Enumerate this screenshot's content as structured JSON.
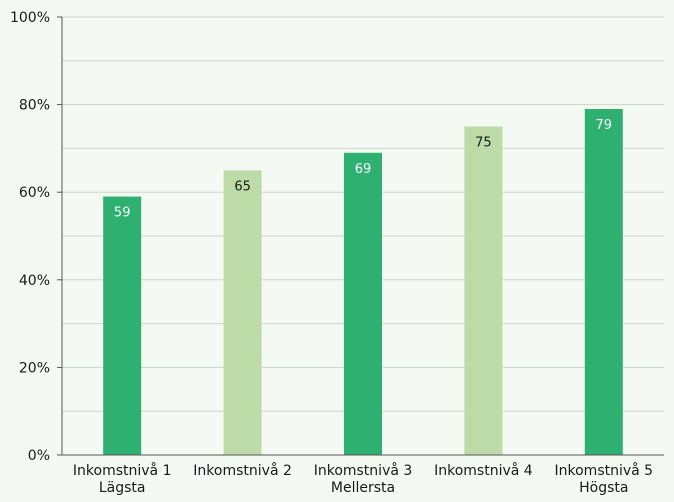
{
  "chart_data": {
    "type": "bar",
    "categories": [
      [
        "Inkomstnivå 1",
        "Lägsta"
      ],
      [
        "Inkomstnivå 2"
      ],
      [
        "Inkomstnivå 3",
        "Mellersta"
      ],
      [
        "Inkomstnivå 4"
      ],
      [
        "Inkomstnivå 5",
        "Högsta"
      ]
    ],
    "values": [
      59,
      65,
      69,
      75,
      79
    ],
    "data_labels": [
      "59",
      "65",
      "69",
      "75",
      "79"
    ],
    "bar_colors": [
      "#2db070",
      "#bddba7",
      "#2db070",
      "#bddba7",
      "#2db070"
    ],
    "label_colors": [
      "#ffffff",
      "#1a1a1a",
      "#ffffff",
      "#1a1a1a",
      "#ffffff"
    ],
    "ylim": [
      0,
      100
    ],
    "yticks": [
      0,
      20,
      40,
      60,
      80,
      100
    ],
    "ytick_labels": [
      "0%",
      "20%",
      "40%",
      "60%",
      "80%",
      "100%"
    ],
    "grid": true,
    "grid_color": "#c8d8c8",
    "axis_color": "#555555",
    "title": "",
    "xlabel": "",
    "ylabel": ""
  }
}
